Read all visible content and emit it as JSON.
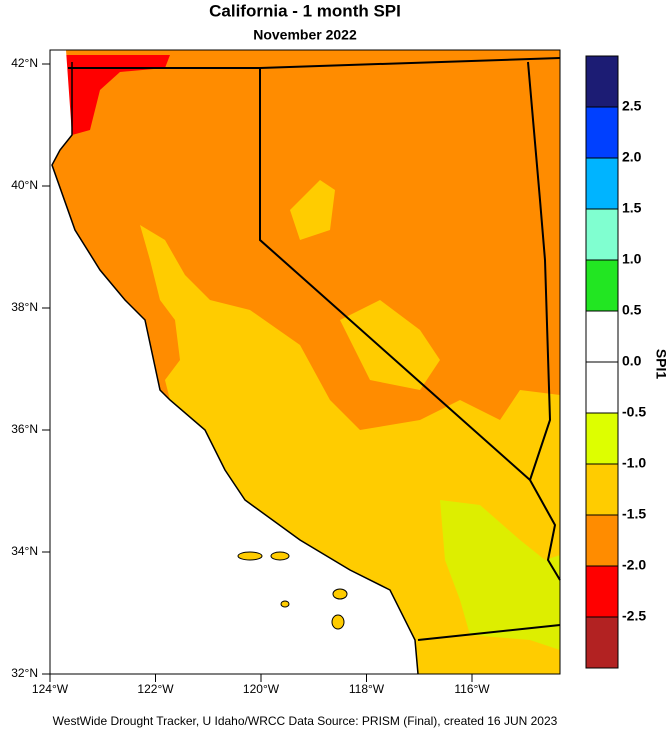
{
  "header": {
    "title": "California - 1 month SPI",
    "subtitle": "November 2022"
  },
  "map": {
    "lat_labels": [
      "42°N",
      "40°N",
      "38°N",
      "36°N",
      "34°N",
      "32°N"
    ],
    "lon_labels": [
      "124°W",
      "122°W",
      "120°W",
      "118°W",
      "116°W"
    ]
  },
  "colorbar": {
    "title": "SPI1",
    "labels": [
      "2.5",
      "2.0",
      "1.5",
      "1.0",
      "0.5",
      "0.0",
      "-0.5",
      "-1.0",
      "-1.5",
      "-2.0",
      "-2.5"
    ]
  },
  "footer": "WestWide Drought Tracker, U Idaho/WRCC Data Source: PRISM (Final), created 16 JUN 2023"
}
